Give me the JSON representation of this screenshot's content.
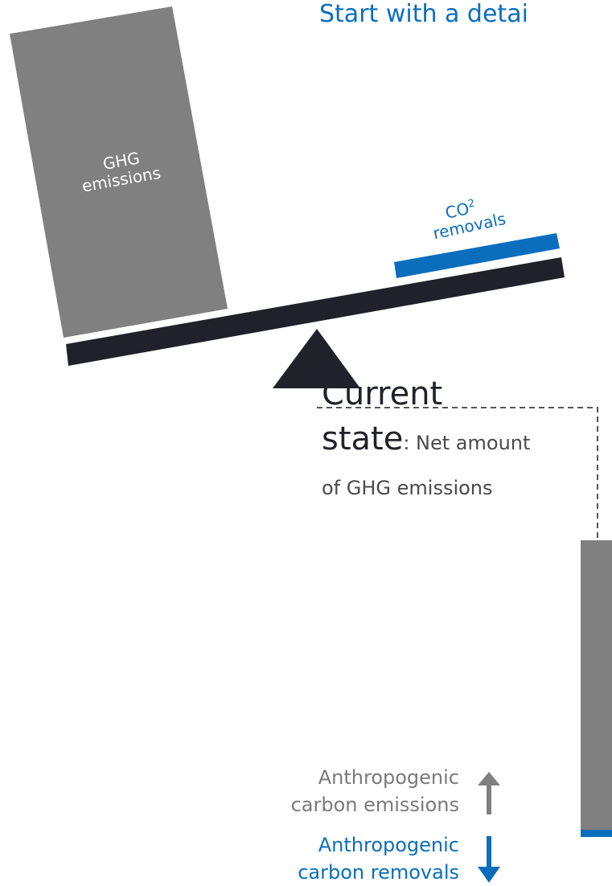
{
  "header": {
    "text": "Start with a detai"
  },
  "scale": {
    "ghg_block_label_line1": "GHG",
    "ghg_block_label_line2": "emissions",
    "co2_label_main": "CO",
    "co2_label_sup": "2",
    "co2_label_line2": "removals"
  },
  "current_state": {
    "title_line1": "Current",
    "title_line2": "state",
    "desc": ": Net amount of GHG emissions"
  },
  "legend": {
    "emissions_line1": "Anthropogenic",
    "emissions_line2": "carbon emissions",
    "removals_line1": "Anthropogenic",
    "removals_line2": "carbon removals"
  },
  "colors": {
    "emissions_gray": "#808080",
    "removals_blue": "#0a6ebd",
    "beam_dark": "#1f2329",
    "dashed_line": "#555555"
  },
  "icons": {
    "up_arrow": "arrow-up-icon",
    "down_arrow": "arrow-down-icon"
  }
}
